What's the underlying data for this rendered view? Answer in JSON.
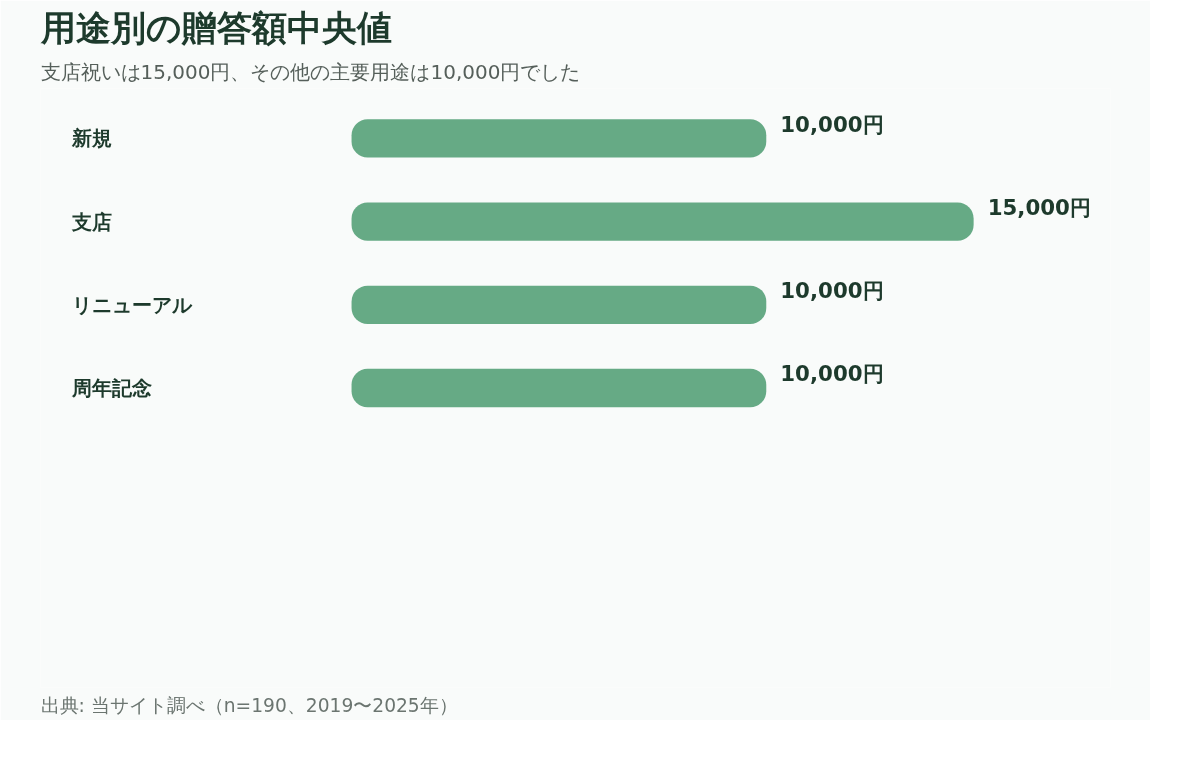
{
  "chart_data": {
    "type": "bar",
    "orientation": "horizontal",
    "title": "用途別の贈答額中央値",
    "subtitle": "支店祝いは15,000円、その他の主要用途は10,000円でした",
    "categories": [
      "新規",
      "支店",
      "リニューアル",
      "周年記念"
    ],
    "values": [
      10000,
      15000,
      10000,
      10000
    ],
    "color": "#66aa85",
    "value_labels": [
      "10,000円",
      "15,000円",
      "10,000円",
      "10,000円"
    ],
    "grid": false,
    "tick_labels": false,
    "annotations": [
      "出典: 当サイト調べ（n=190、2019〜2025年）"
    ]
  }
}
